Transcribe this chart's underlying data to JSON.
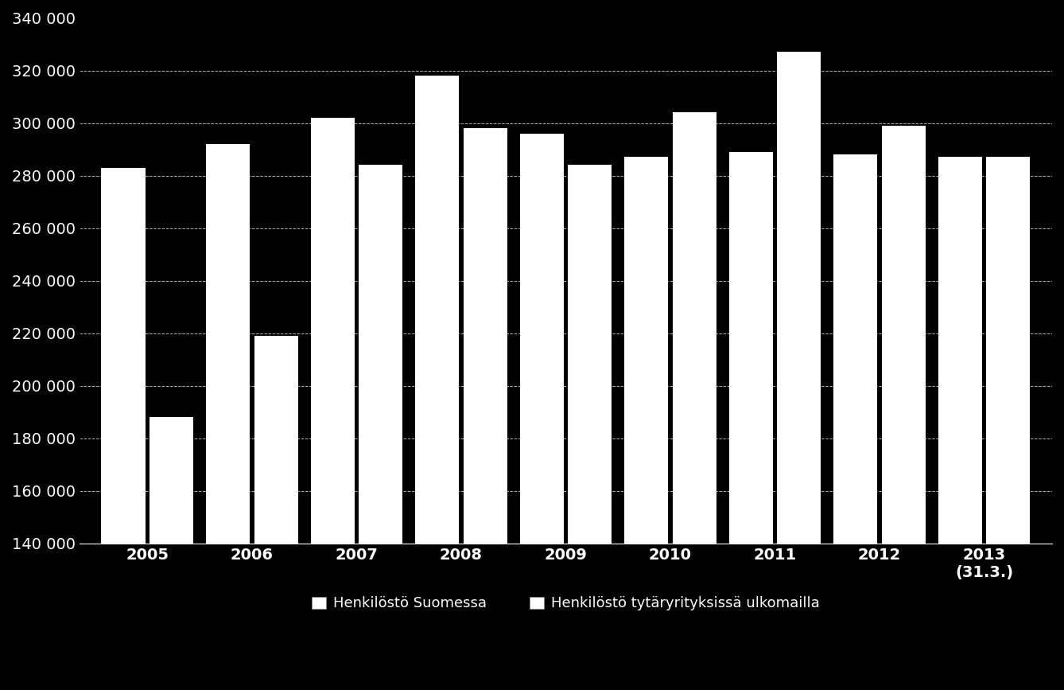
{
  "years": [
    "2005",
    "2006",
    "2007",
    "2008",
    "2009",
    "2010",
    "2011",
    "2012",
    "2013\n(31.3.)"
  ],
  "suomessa": [
    283000,
    292000,
    302000,
    318000,
    296000,
    287000,
    289000,
    288000,
    287000
  ],
  "ulkomailla": [
    188000,
    219000,
    284000,
    298000,
    284000,
    304000,
    327000,
    299000,
    287000
  ],
  "bar_color_suomessa": "#ffffff",
  "bar_color_ulkomailla": "#ffffff",
  "background_color": "#000000",
  "text_color": "#ffffff",
  "grid_color": "#ffffff",
  "ylim": [
    140000,
    340000
  ],
  "yticks": [
    140000,
    160000,
    180000,
    200000,
    220000,
    240000,
    260000,
    280000,
    300000,
    320000,
    340000
  ],
  "legend_label_suomessa": "Henkilöstö Suomessa",
  "legend_label_ulkomailla": "Henkilöstö tytäryrityksissä ulkomailla",
  "bar_width": 0.42,
  "bar_gap": 0.04,
  "xlabel": "",
  "ylabel": ""
}
